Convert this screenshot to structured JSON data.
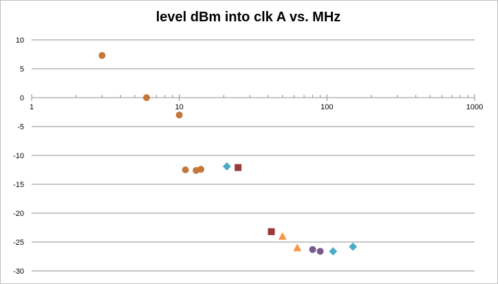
{
  "chart_data": {
    "type": "scatter",
    "title": "level dBm into clk A vs. MHz",
    "xscale": "log",
    "xlim": [
      1,
      1000
    ],
    "ylim": [
      -30,
      10
    ],
    "x_tick_labels": [
      "1",
      "10",
      "100",
      "1000"
    ],
    "y_tick_labels": [
      "10",
      "5",
      "0",
      "-5",
      "-10",
      "-15",
      "-20",
      "-25",
      "-30"
    ],
    "grid": "horizontal",
    "legend": "none",
    "series": [
      {
        "marker": "circle",
        "color": "#c5773a",
        "points": [
          [
            3,
            7.3
          ],
          [
            6,
            0
          ],
          [
            10,
            -3
          ],
          [
            11,
            -12.5
          ],
          [
            13,
            -12.6
          ],
          [
            14,
            -12.4
          ]
        ]
      },
      {
        "marker": "diamond",
        "color": "#4bacc6",
        "points": [
          [
            21,
            -11.9
          ],
          [
            110,
            -26.6
          ],
          [
            150,
            -25.8
          ]
        ]
      },
      {
        "marker": "square",
        "color": "#9b3a3a",
        "points": [
          [
            25,
            -12.1
          ],
          [
            42,
            -23.2
          ]
        ]
      },
      {
        "marker": "triangle",
        "color": "#f79646",
        "points": [
          [
            50,
            -24
          ],
          [
            63,
            -26
          ]
        ]
      },
      {
        "marker": "circle",
        "color": "#7a5a8e",
        "points": [
          [
            80,
            -26.3
          ],
          [
            90,
            -26.6
          ]
        ]
      }
    ]
  }
}
